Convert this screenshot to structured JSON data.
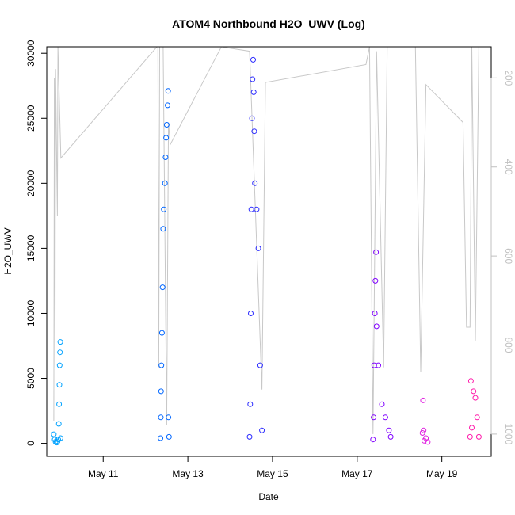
{
  "chart_data": {
    "type": "scatter",
    "title": "ATOM4 Northbound H2O_UWV (Log)",
    "xlabel": "Date",
    "ylabel": "H2O_UWV",
    "x_domain": [
      "2016-05-09T16:00",
      "2016-05-20T04:00"
    ],
    "ylim": [
      -1000,
      30500
    ],
    "y2lim": [
      1050,
      130
    ],
    "x_ticks": [
      {
        "date": "2016-05-11T00:00",
        "label": "May 11"
      },
      {
        "date": "2016-05-13T00:00",
        "label": "May 13"
      },
      {
        "date": "2016-05-15T00:00",
        "label": "May 15"
      },
      {
        "date": "2016-05-17T00:00",
        "label": "May 17"
      },
      {
        "date": "2016-05-19T00:00",
        "label": "May 19"
      }
    ],
    "y_ticks": [
      0,
      5000,
      10000,
      15000,
      20000,
      25000,
      30000
    ],
    "y2_ticks": [
      200,
      400,
      600,
      800,
      1000
    ],
    "colors": {
      "axis": "#000000",
      "right_axis": "#c0c0c0",
      "pressure_line": "#c8c8c8"
    },
    "series": [
      {
        "color": "#00a2ff",
        "points": [
          [
            "2016-05-09T20:00",
            700
          ],
          [
            "2016-05-09T20:30",
            300
          ],
          [
            "2016-05-09T21:00",
            120
          ],
          [
            "2016-05-09T21:40",
            60
          ],
          [
            "2016-05-09T22:10",
            150
          ],
          [
            "2016-05-09T22:30",
            300
          ],
          [
            "2016-05-09T22:50",
            1500
          ],
          [
            "2016-05-09T23:00",
            3000
          ],
          [
            "2016-05-09T23:10",
            4500
          ],
          [
            "2016-05-09T23:20",
            6000
          ],
          [
            "2016-05-09T23:30",
            7000
          ],
          [
            "2016-05-09T23:40",
            7800
          ],
          [
            "2016-05-09T23:50",
            400
          ]
        ]
      },
      {
        "color": "#0066ff",
        "points": [
          [
            "2016-05-12T08:30",
            400
          ],
          [
            "2016-05-12T08:40",
            2000
          ],
          [
            "2016-05-12T08:50",
            4000
          ],
          [
            "2016-05-12T09:00",
            6000
          ],
          [
            "2016-05-12T09:20",
            8500
          ],
          [
            "2016-05-12T09:40",
            12000
          ],
          [
            "2016-05-12T10:00",
            16500
          ],
          [
            "2016-05-12T10:20",
            18000
          ],
          [
            "2016-05-12T11:00",
            20000
          ],
          [
            "2016-05-12T11:20",
            22000
          ],
          [
            "2016-05-12T11:40",
            23500
          ],
          [
            "2016-05-12T12:00",
            24500
          ],
          [
            "2016-05-12T12:30",
            26000
          ],
          [
            "2016-05-12T12:50",
            27100
          ],
          [
            "2016-05-12T13:00",
            2000
          ],
          [
            "2016-05-12T13:20",
            500
          ]
        ]
      },
      {
        "color": "#2a2aff",
        "points": [
          [
            "2016-05-14T11:00",
            500
          ],
          [
            "2016-05-14T11:20",
            3000
          ],
          [
            "2016-05-14T11:40",
            10000
          ],
          [
            "2016-05-14T12:00",
            18000
          ],
          [
            "2016-05-14T12:20",
            25000
          ],
          [
            "2016-05-14T12:40",
            28000
          ],
          [
            "2016-05-14T13:00",
            29500
          ],
          [
            "2016-05-14T13:20",
            27000
          ],
          [
            "2016-05-14T13:40",
            24000
          ],
          [
            "2016-05-14T14:00",
            20000
          ],
          [
            "2016-05-14T15:00",
            18000
          ],
          [
            "2016-05-14T16:00",
            15000
          ],
          [
            "2016-05-14T17:00",
            6000
          ],
          [
            "2016-05-14T18:00",
            1000
          ]
        ]
      },
      {
        "color": "#8000ff",
        "points": [
          [
            "2016-05-17T09:00",
            300
          ],
          [
            "2016-05-17T09:20",
            2000
          ],
          [
            "2016-05-17T09:40",
            6000
          ],
          [
            "2016-05-17T10:00",
            10000
          ],
          [
            "2016-05-17T10:20",
            12500
          ],
          [
            "2016-05-17T10:40",
            14700
          ],
          [
            "2016-05-17T11:00",
            9000
          ],
          [
            "2016-05-17T12:00",
            6000
          ],
          [
            "2016-05-17T14:00",
            3000
          ],
          [
            "2016-05-17T16:00",
            2000
          ],
          [
            "2016-05-17T18:00",
            1000
          ],
          [
            "2016-05-17T19:00",
            500
          ]
        ]
      },
      {
        "color": "#e020e0",
        "points": [
          [
            "2016-05-18T13:00",
            800
          ],
          [
            "2016-05-18T13:20",
            3300
          ],
          [
            "2016-05-18T13:40",
            1000
          ],
          [
            "2016-05-18T14:00",
            200
          ],
          [
            "2016-05-18T15:00",
            400
          ],
          [
            "2016-05-18T16:00",
            100
          ]
        ]
      },
      {
        "color": "#ff1aaa",
        "points": [
          [
            "2016-05-19T16:00",
            500
          ],
          [
            "2016-05-19T16:30",
            4800
          ],
          [
            "2016-05-19T17:00",
            1200
          ],
          [
            "2016-05-19T18:00",
            4000
          ],
          [
            "2016-05-19T19:00",
            3500
          ],
          [
            "2016-05-19T20:00",
            2000
          ],
          [
            "2016-05-19T21:00",
            500
          ]
        ]
      }
    ],
    "pressure_line": {
      "color": "#c8c8c8",
      "points": [
        [
          "2016-05-09T20:00",
          970
        ],
        [
          "2016-05-09T20:20",
          200
        ],
        [
          "2016-05-09T20:40",
          850
        ],
        [
          "2016-05-09T21:00",
          180
        ],
        [
          "2016-05-09T22:00",
          510
        ],
        [
          "2016-05-09T22:20",
          130
        ],
        [
          "2016-05-10T00:00",
          380
        ],
        [
          "2016-05-12T06:30",
          120
        ],
        [
          "2016-05-12T07:00",
          130
        ],
        [
          "2016-05-12T07:30",
          850
        ],
        [
          "2016-05-12T08:00",
          130
        ],
        [
          "2016-05-12T10:00",
          130
        ],
        [
          "2016-05-12T12:00",
          980
        ],
        [
          "2016-05-12T13:00",
          300
        ],
        [
          "2016-05-12T14:00",
          350
        ],
        [
          "2016-05-13T19:00",
          130
        ],
        [
          "2016-05-14T11:00",
          140
        ],
        [
          "2016-05-14T18:00",
          900
        ],
        [
          "2016-05-14T20:00",
          210
        ],
        [
          "2016-05-17T05:00",
          170
        ],
        [
          "2016-05-17T07:00",
          130
        ],
        [
          "2016-05-17T09:00",
          1000
        ],
        [
          "2016-05-17T11:00",
          140
        ],
        [
          "2016-05-17T15:00",
          850
        ],
        [
          "2016-05-17T17:00",
          130
        ],
        [
          "2016-05-18T09:00",
          130
        ],
        [
          "2016-05-18T12:00",
          860
        ],
        [
          "2016-05-18T15:00",
          215
        ],
        [
          "2016-05-19T12:00",
          300
        ],
        [
          "2016-05-19T14:00",
          760
        ],
        [
          "2016-05-19T16:00",
          760
        ],
        [
          "2016-05-19T17:00",
          130
        ],
        [
          "2016-05-19T19:00",
          790
        ],
        [
          "2016-05-19T21:00",
          130
        ]
      ]
    }
  }
}
